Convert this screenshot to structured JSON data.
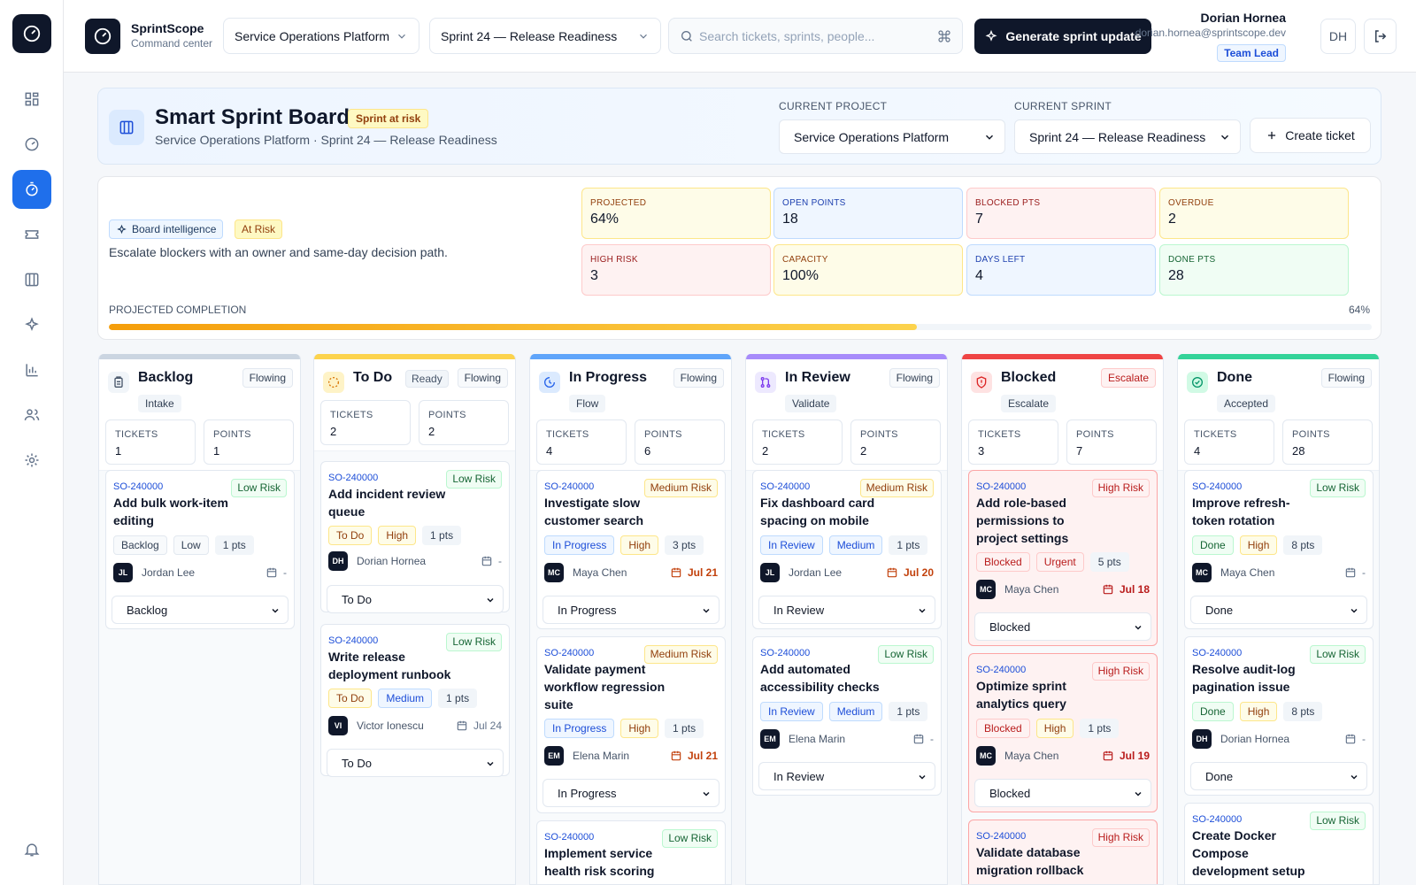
{
  "app": {
    "name": "SprintScope",
    "subtitle": "Command center"
  },
  "topbar": {
    "project_select": "Service Operations Platform",
    "sprint_select": "Sprint 24 — Release Readiness",
    "search_placeholder": "Search tickets, sprints, people...",
    "generate_label": "Generate sprint update",
    "user": {
      "name": "Dorian Hornea",
      "email": "dorian.hornea@sprintscope.dev",
      "role": "Team Lead",
      "initials": "DH"
    }
  },
  "header": {
    "title": "Smart Sprint Board",
    "badge": "Sprint at risk",
    "subtitle": "Service Operations Platform · Sprint 24 — Release Readiness",
    "project_label": "CURRENT PROJECT",
    "project_value": "Service Operations Platform",
    "sprint_label": "CURRENT SPRINT",
    "sprint_value": "Sprint 24 — Release Readiness",
    "create_label": "Create ticket"
  },
  "intel": {
    "tag": "Board intelligence",
    "status": "At Risk",
    "message": "Escalate blockers with an owner and same-day decision path.",
    "metrics": [
      {
        "label": "PROJECTED",
        "value": "64%",
        "tone": "yellow"
      },
      {
        "label": "OPEN POINTS",
        "value": "18",
        "tone": "blue"
      },
      {
        "label": "BLOCKED PTS",
        "value": "7",
        "tone": "red"
      },
      {
        "label": "OVERDUE",
        "value": "2",
        "tone": "yellow"
      },
      {
        "label": "HIGH RISK",
        "value": "3",
        "tone": "red"
      },
      {
        "label": "CAPACITY",
        "value": "100%",
        "tone": "yellow"
      },
      {
        "label": "DAYS LEFT",
        "value": "4",
        "tone": "blue"
      },
      {
        "label": "DONE PTS",
        "value": "28",
        "tone": "green"
      }
    ],
    "completion_label": "PROJECTED COMPLETION",
    "completion_text": "64%",
    "completion_fraction": 0.64
  },
  "columns": [
    {
      "title": "Backlog",
      "flow": "Flowing",
      "chip": "Intake",
      "accent": "#cbd5e1",
      "icon": "clipboard-icon",
      "tickets_label": "TICKETS",
      "tickets": "1",
      "points_label": "POINTS",
      "points": "1",
      "cards": [
        {
          "id": "SO-240000",
          "title": "Add bulk work-item editing",
          "risk": "Low Risk",
          "risk_level": "low",
          "chips": [
            {
              "text": "Backlog",
              "tone": "gray"
            },
            {
              "text": "Low",
              "tone": "gray"
            },
            {
              "text": "1 pts",
              "tone": "plain"
            }
          ],
          "initials": "JL",
          "assignee": "Jordan Lee",
          "due": "-",
          "due_tone": "none",
          "status": "Backlog"
        }
      ]
    },
    {
      "title": "To Do",
      "ready": "Ready",
      "flow": "Flowing",
      "accent": "#fcd34d",
      "icon": "dashed-circle-icon",
      "tickets_label": "TICKETS",
      "tickets": "2",
      "points_label": "POINTS",
      "points": "2",
      "cards": [
        {
          "id": "SO-240000",
          "title": "Add incident review queue",
          "risk": "Low Risk",
          "risk_level": "low",
          "chips": [
            {
              "text": "To Do",
              "tone": "yellow"
            },
            {
              "text": "High",
              "tone": "yellow"
            },
            {
              "text": "1 pts",
              "tone": "plain"
            }
          ],
          "initials": "DH",
          "assignee": "Dorian Hornea",
          "due": "-",
          "due_tone": "none",
          "status": "To Do"
        },
        {
          "id": "SO-240000",
          "title": "Write release deployment runbook",
          "risk": "Low Risk",
          "risk_level": "low",
          "chips": [
            {
              "text": "To Do",
              "tone": "yellow"
            },
            {
              "text": "Medium",
              "tone": "blue"
            },
            {
              "text": "1 pts",
              "tone": "plain"
            }
          ],
          "initials": "VI",
          "assignee": "Victor Ionescu",
          "due": "Jul 24",
          "due_tone": "none",
          "status": "To Do"
        }
      ]
    },
    {
      "title": "In Progress",
      "flow": "Flowing",
      "chip": "Flow",
      "accent": "#60a5fa",
      "icon": "progress-clock-icon",
      "tickets_label": "TICKETS",
      "tickets": "4",
      "points_label": "POINTS",
      "points": "6",
      "cards": [
        {
          "id": "SO-240000",
          "title": "Investigate slow customer search",
          "risk": "Medium Risk",
          "risk_level": "medium",
          "chips": [
            {
              "text": "In Progress",
              "tone": "blue"
            },
            {
              "text": "High",
              "tone": "yellow"
            },
            {
              "text": "3 pts",
              "tone": "plain"
            }
          ],
          "initials": "MC",
          "assignee": "Maya Chen",
          "due": "Jul 21",
          "due_tone": "warn",
          "status": "In Progress"
        },
        {
          "id": "SO-240000",
          "title": "Validate payment workflow regression suite",
          "risk": "Medium Risk",
          "risk_level": "medium",
          "chips": [
            {
              "text": "In Progress",
              "tone": "blue"
            },
            {
              "text": "High",
              "tone": "yellow"
            },
            {
              "text": "1 pts",
              "tone": "plain"
            }
          ],
          "initials": "EM",
          "assignee": "Elena Marin",
          "due": "Jul 21",
          "due_tone": "warn",
          "status": "In Progress"
        },
        {
          "id": "SO-240000",
          "title": "Implement service health risk scoring",
          "risk": "Low Risk",
          "risk_level": "low",
          "chips": [],
          "initials": "",
          "assignee": "",
          "due": "",
          "due_tone": "none",
          "status": ""
        }
      ]
    },
    {
      "title": "In Review",
      "flow": "Flowing",
      "chip": "Validate",
      "accent": "#a78bfa",
      "icon": "pull-request-icon",
      "tickets_label": "TICKETS",
      "tickets": "2",
      "points_label": "POINTS",
      "points": "2",
      "cards": [
        {
          "id": "SO-240000",
          "title": "Fix dashboard card spacing on mobile",
          "risk": "Medium Risk",
          "risk_level": "medium",
          "chips": [
            {
              "text": "In Review",
              "tone": "blue"
            },
            {
              "text": "Medium",
              "tone": "blue"
            },
            {
              "text": "1 pts",
              "tone": "plain"
            }
          ],
          "initials": "JL",
          "assignee": "Jordan Lee",
          "due": "Jul 20",
          "due_tone": "warn",
          "status": "In Review"
        },
        {
          "id": "SO-240000",
          "title": "Add automated accessibility checks",
          "risk": "Low Risk",
          "risk_level": "low",
          "chips": [
            {
              "text": "In Review",
              "tone": "blue"
            },
            {
              "text": "Medium",
              "tone": "blue"
            },
            {
              "text": "1 pts",
              "tone": "plain"
            }
          ],
          "initials": "EM",
          "assignee": "Elena Marin",
          "due": "-",
          "due_tone": "none",
          "status": "In Review"
        }
      ]
    },
    {
      "title": "Blocked",
      "flow": "Escalate",
      "chip": "Escalate",
      "accent": "#ef4444",
      "icon": "shield-alert-icon",
      "tickets_label": "TICKETS",
      "tickets": "3",
      "points_label": "POINTS",
      "points": "7",
      "cards": [
        {
          "id": "SO-240000",
          "title": "Add role-based permissions to project settings",
          "risk": "High Risk",
          "risk_level": "high",
          "chips": [
            {
              "text": "Blocked",
              "tone": "red"
            },
            {
              "text": "Urgent",
              "tone": "red"
            },
            {
              "text": "5 pts",
              "tone": "plain"
            }
          ],
          "initials": "MC",
          "assignee": "Maya Chen",
          "due": "Jul 18",
          "due_tone": "danger",
          "status": "Blocked"
        },
        {
          "id": "SO-240000",
          "title": "Optimize sprint analytics query",
          "risk": "High Risk",
          "risk_level": "high",
          "chips": [
            {
              "text": "Blocked",
              "tone": "red"
            },
            {
              "text": "High",
              "tone": "yellow"
            },
            {
              "text": "1 pts",
              "tone": "plain"
            }
          ],
          "initials": "MC",
          "assignee": "Maya Chen",
          "due": "Jul 19",
          "due_tone": "danger",
          "status": "Blocked"
        },
        {
          "id": "SO-240000",
          "title": "Validate database migration rollback",
          "risk": "High Risk",
          "risk_level": "high",
          "chips": [],
          "initials": "",
          "assignee": "",
          "due": "",
          "due_tone": "none",
          "status": ""
        }
      ]
    },
    {
      "title": "Done",
      "flow": "Flowing",
      "chip": "Accepted",
      "accent": "#34d399",
      "icon": "check-circle-icon",
      "tickets_label": "TICKETS",
      "tickets": "4",
      "points_label": "POINTS",
      "points": "28",
      "cards": [
        {
          "id": "SO-240000",
          "title": "Improve refresh-token rotation",
          "risk": "Low Risk",
          "risk_level": "low",
          "chips": [
            {
              "text": "Done",
              "tone": "green"
            },
            {
              "text": "High",
              "tone": "yellow"
            },
            {
              "text": "8 pts",
              "tone": "plain"
            }
          ],
          "initials": "MC",
          "assignee": "Maya Chen",
          "due": "-",
          "due_tone": "none",
          "status": "Done"
        },
        {
          "id": "SO-240000",
          "title": "Resolve audit-log pagination issue",
          "risk": "Low Risk",
          "risk_level": "low",
          "chips": [
            {
              "text": "Done",
              "tone": "green"
            },
            {
              "text": "High",
              "tone": "yellow"
            },
            {
              "text": "8 pts",
              "tone": "plain"
            }
          ],
          "initials": "DH",
          "assignee": "Dorian Hornea",
          "due": "-",
          "due_tone": "none",
          "status": "Done"
        },
        {
          "id": "SO-240000",
          "title": "Create Docker Compose development setup",
          "risk": "Low Risk",
          "risk_level": "low",
          "chips": [],
          "initials": "",
          "assignee": "",
          "due": "",
          "due_tone": "none",
          "status": ""
        }
      ]
    }
  ]
}
